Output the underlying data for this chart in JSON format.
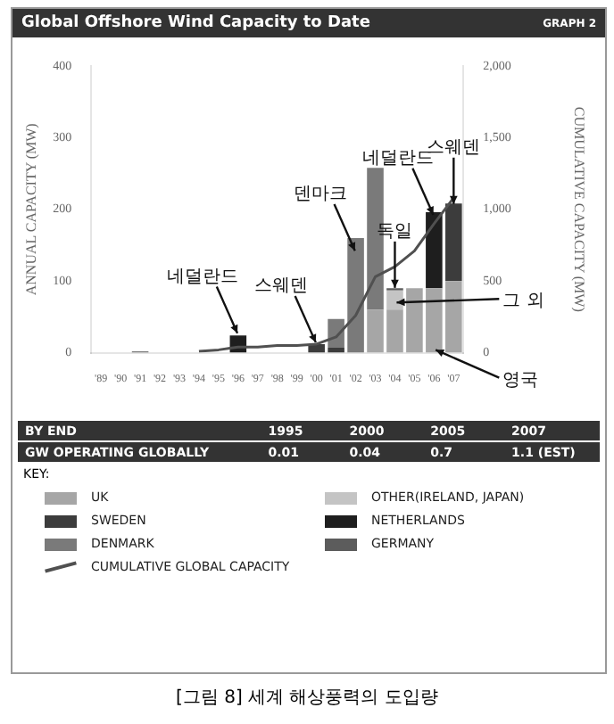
{
  "chart_data": {
    "type": "bar",
    "stacked": true,
    "title": "Global Offshore Wind Capacity to Date",
    "ylabel": "ANNUAL CAPACITY (MW)",
    "y2label": "CUMULATIVE CAPACITY (MW)",
    "legend_title": "KEY:",
    "legend": "bottom",
    "marker": "none",
    "line_style": "solid",
    "categories": [
      "'89",
      "'90",
      "'91",
      "'92",
      "'93",
      "'94",
      "'95",
      "'96",
      "'97",
      "'98",
      "'99",
      "'00",
      "'01",
      "'02",
      "'03",
      "'04",
      "'05",
      "'06",
      "'07"
    ],
    "ylim": [
      0,
      400
    ],
    "yticks": [
      0,
      100,
      200,
      300,
      400
    ],
    "y2lim": [
      0,
      2000
    ],
    "y2ticks": [
      0,
      500,
      {
        "value": 1000,
        "label": "1,000"
      },
      {
        "value": 1500,
        "label": "1,500"
      },
      {
        "value": 2000,
        "label": "2,000"
      }
    ],
    "series": [
      {
        "name": "UK",
        "color": "#a6a6a6",
        "values": [
          null,
          null,
          null,
          null,
          null,
          null,
          null,
          null,
          null,
          null,
          null,
          null,
          null,
          null,
          60,
          60,
          90,
          90,
          100
        ]
      },
      {
        "name": "OTHER(IRELAND, JAPAN)",
        "color": "#c4c4c4",
        "values": [
          null,
          null,
          null,
          null,
          null,
          null,
          null,
          null,
          null,
          null,
          null,
          null,
          null,
          null,
          null,
          27,
          null,
          null,
          null
        ]
      },
      {
        "name": "SWEDEN",
        "color": "#3c3c3c",
        "values": [
          null,
          null,
          null,
          null,
          null,
          null,
          null,
          null,
          null,
          null,
          null,
          12,
          7,
          null,
          null,
          null,
          null,
          null,
          108
        ]
      },
      {
        "name": "NETHERLANDS",
        "color": "#1e1e1e",
        "values": [
          null,
          null,
          null,
          null,
          null,
          null,
          null,
          24,
          null,
          null,
          null,
          null,
          null,
          null,
          null,
          null,
          null,
          106,
          null
        ]
      },
      {
        "name": "DENMARK",
        "color": "#7a7a7a",
        "values": [
          null,
          null,
          2,
          null,
          null,
          null,
          null,
          null,
          null,
          null,
          null,
          null,
          40,
          160,
          198,
          null,
          null,
          null,
          null
        ]
      },
      {
        "name": "GERMANY",
        "color": "#5c5c5c",
        "values": [
          null,
          null,
          null,
          null,
          null,
          null,
          null,
          null,
          null,
          null,
          null,
          null,
          null,
          null,
          null,
          3,
          null,
          null,
          null
        ]
      },
      {
        "name": "CUMULATIVE GLOBAL CAPACITY",
        "type": "line",
        "axis": "y2",
        "color": "#505050",
        "values": [
          null,
          null,
          null,
          null,
          null,
          10,
          20,
          40,
          40,
          50,
          50,
          60,
          110,
          260,
          530,
          600,
          710,
          900,
          1080
        ]
      }
    ],
    "annotations": [
      "GRAPH 2",
      "BY END",
      "1995",
      "2000",
      "2005",
      "2007",
      "GW OPERATING GLOBALLY",
      "0.01",
      "0.04",
      "0.7",
      "1.1 (EST)",
      {
        "text": "네덜란드",
        "x": "'96",
        "y": 25
      },
      {
        "text": "스웨덴",
        "x": "'00",
        "y": 12
      },
      {
        "text": "덴마크",
        "x": "'02",
        "y": 140
      },
      {
        "text": "독일",
        "x": "'04",
        "y": 88
      },
      {
        "text": "네덜란드",
        "x": "'06",
        "y": 190
      },
      {
        "text": "스웨덴",
        "x": "'07",
        "y": 205
      },
      {
        "text": "그 외",
        "x": "'04",
        "y": 70
      },
      {
        "text": "영국",
        "x": "'06",
        "y": 5
      },
      "[그림 8] 세계 해상풍력의 도입량"
    ]
  }
}
